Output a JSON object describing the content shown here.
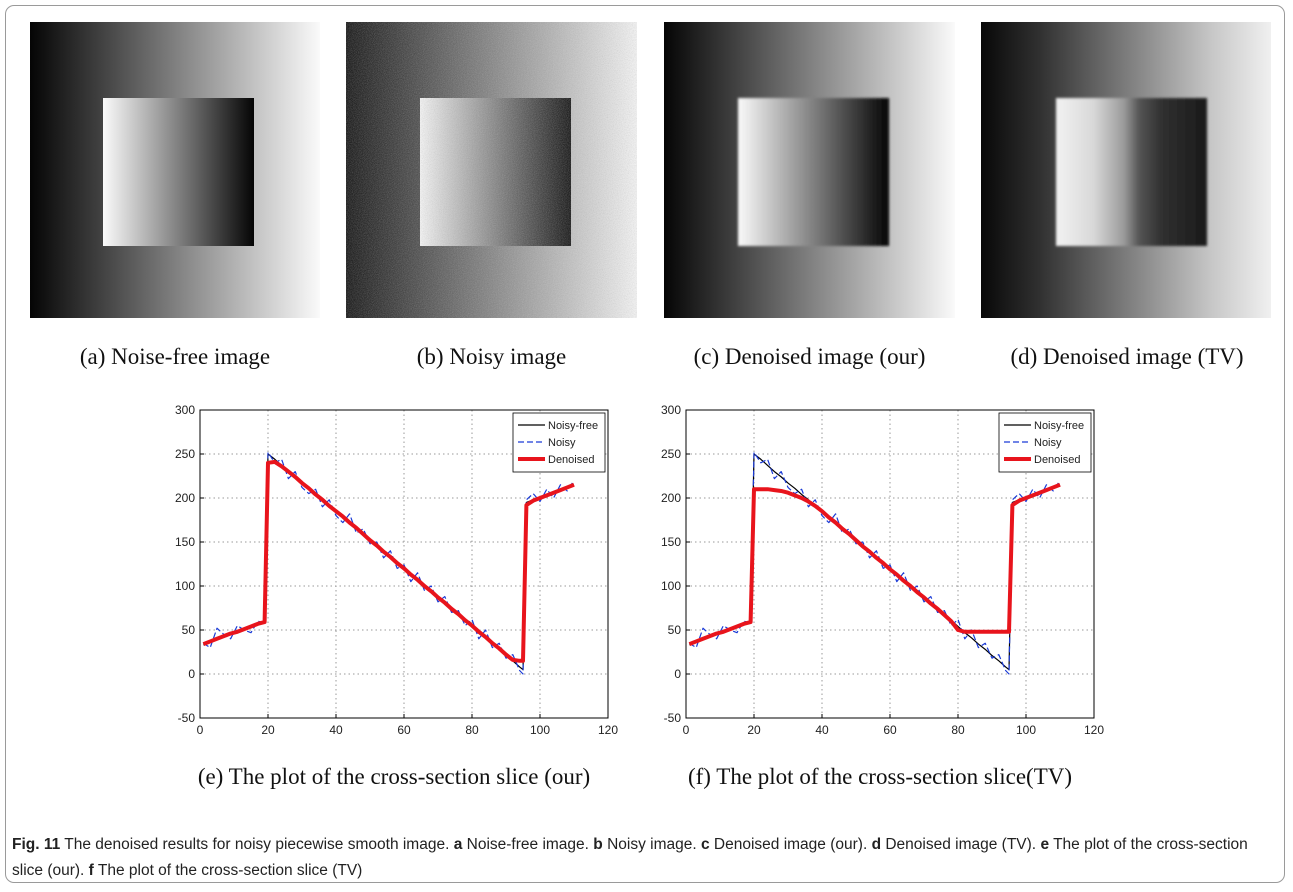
{
  "panels": [
    {
      "caption": "(a) Noise-free image"
    },
    {
      "caption": "(b) Noisy image"
    },
    {
      "caption": "(c) Denoised image (our)"
    },
    {
      "caption": "(d) Denoised image (TV)"
    }
  ],
  "chart_data": [
    {
      "type": "line",
      "caption": "(e) The plot of the cross-section slice (our)",
      "x": [
        1,
        3,
        5,
        7,
        9,
        11,
        13,
        15,
        17,
        19,
        20,
        22,
        24,
        26,
        28,
        30,
        32,
        34,
        36,
        38,
        40,
        42,
        44,
        46,
        48,
        50,
        52,
        54,
        56,
        58,
        60,
        62,
        64,
        66,
        68,
        70,
        72,
        74,
        76,
        78,
        80,
        82,
        84,
        86,
        88,
        90,
        92,
        94,
        95,
        96,
        98,
        100,
        102,
        104,
        106,
        108,
        110
      ],
      "series": [
        {
          "name": "Noisy-free",
          "color": "#000000",
          "linestyle": "solid",
          "linewidth": 1.2,
          "values": [
            33,
            36,
            39,
            42,
            45,
            48,
            51,
            54,
            57,
            60,
            250,
            244,
            237,
            230,
            224,
            217,
            211,
            204,
            198,
            191,
            185,
            178,
            172,
            165,
            159,
            152,
            145,
            139,
            132,
            126,
            119,
            113,
            106,
            100,
            93,
            87,
            80,
            74,
            67,
            61,
            54,
            47,
            41,
            34,
            28,
            21,
            15,
            8,
            5,
            195,
            198,
            201,
            204,
            207,
            209,
            212,
            215
          ]
        },
        {
          "name": "Noisy",
          "color": "#1a3ad6",
          "linestyle": "dashed",
          "linewidth": 1.2,
          "values": [
            35,
            30,
            52,
            45,
            40,
            55,
            50,
            47,
            60,
            58,
            252,
            240,
            244,
            222,
            230,
            212,
            205,
            210,
            190,
            198,
            180,
            172,
            182,
            160,
            165,
            148,
            150,
            132,
            140,
            120,
            124,
            105,
            115,
            95,
            100,
            82,
            88,
            70,
            72,
            55,
            62,
            40,
            50,
            30,
            35,
            18,
            22,
            4,
            0,
            198,
            205,
            196,
            210,
            200,
            215,
            208,
            220
          ]
        },
        {
          "name": "Denoised",
          "color": "#e8141c",
          "linestyle": "solid",
          "linewidth": 4,
          "values": [
            34,
            37,
            40,
            43,
            46,
            48,
            51,
            54,
            57,
            59,
            240,
            241,
            236,
            230,
            224,
            217,
            211,
            204,
            198,
            191,
            185,
            179,
            172,
            166,
            159,
            152,
            146,
            139,
            133,
            126,
            120,
            113,
            107,
            100,
            94,
            87,
            81,
            74,
            68,
            61,
            55,
            48,
            42,
            35,
            29,
            22,
            16,
            15,
            15,
            192,
            197,
            200,
            203,
            206,
            209,
            212,
            215
          ]
        }
      ],
      "xlim": [
        0,
        120
      ],
      "xticks": [
        0,
        20,
        40,
        60,
        80,
        100,
        120
      ],
      "ylim": [
        -50,
        300
      ],
      "yticks": [
        -50,
        0,
        50,
        100,
        150,
        200,
        250,
        300
      ],
      "grid": true,
      "legend": "upper right"
    },
    {
      "type": "line",
      "caption": "(f) The plot of the cross-section slice(TV)",
      "x": [
        1,
        3,
        5,
        7,
        9,
        11,
        13,
        15,
        17,
        19,
        20,
        22,
        24,
        26,
        28,
        30,
        32,
        34,
        36,
        38,
        40,
        42,
        44,
        46,
        48,
        50,
        52,
        54,
        56,
        58,
        60,
        62,
        64,
        66,
        68,
        70,
        72,
        74,
        76,
        78,
        80,
        82,
        84,
        86,
        88,
        90,
        92,
        94,
        95,
        96,
        98,
        100,
        102,
        104,
        106,
        108,
        110
      ],
      "series": [
        {
          "name": "Noisy-free",
          "color": "#000000",
          "linestyle": "solid",
          "linewidth": 1.2,
          "values": [
            33,
            36,
            39,
            42,
            45,
            48,
            51,
            54,
            57,
            60,
            250,
            244,
            237,
            230,
            224,
            217,
            211,
            204,
            198,
            191,
            185,
            178,
            172,
            165,
            159,
            152,
            145,
            139,
            132,
            126,
            119,
            113,
            106,
            100,
            93,
            87,
            80,
            74,
            67,
            61,
            54,
            47,
            41,
            34,
            28,
            21,
            15,
            8,
            5,
            195,
            198,
            201,
            204,
            207,
            209,
            212,
            215
          ]
        },
        {
          "name": "Noisy",
          "color": "#1a3ad6",
          "linestyle": "dashed",
          "linewidth": 1.2,
          "values": [
            35,
            30,
            52,
            45,
            40,
            55,
            50,
            47,
            60,
            58,
            252,
            240,
            244,
            222,
            230,
            212,
            205,
            210,
            190,
            198,
            180,
            172,
            182,
            160,
            165,
            148,
            150,
            132,
            140,
            120,
            124,
            105,
            115,
            95,
            100,
            82,
            88,
            70,
            72,
            55,
            62,
            40,
            50,
            30,
            35,
            18,
            22,
            4,
            0,
            198,
            205,
            196,
            210,
            200,
            215,
            208,
            220
          ]
        },
        {
          "name": "Denoised",
          "color": "#e8141c",
          "linestyle": "solid",
          "linewidth": 4,
          "values": [
            34,
            37,
            40,
            43,
            46,
            48,
            51,
            54,
            57,
            59,
            210,
            210,
            210,
            209,
            208,
            206,
            203,
            200,
            196,
            191,
            185,
            178,
            172,
            165,
            159,
            152,
            145,
            139,
            132,
            126,
            119,
            113,
            106,
            100,
            93,
            87,
            80,
            74,
            67,
            60,
            50,
            48,
            48,
            48,
            48,
            48,
            48,
            48,
            48,
            192,
            197,
            200,
            203,
            206,
            209,
            212,
            215
          ]
        }
      ],
      "xlim": [
        0,
        120
      ],
      "xticks": [
        0,
        20,
        40,
        60,
        80,
        100,
        120
      ],
      "ylim": [
        -50,
        300
      ],
      "yticks": [
        -50,
        0,
        50,
        100,
        150,
        200,
        250,
        300
      ],
      "grid": true,
      "legend": "upper right"
    }
  ],
  "figure_caption": {
    "label": "Fig. 11",
    "text": "The denoised results for noisy piecewise smooth image.",
    "items": [
      {
        "letter": "a",
        "text": "Noise-free image."
      },
      {
        "letter": "b",
        "text": "Noisy image."
      },
      {
        "letter": "c",
        "text": "Denoised image (our)."
      },
      {
        "letter": "d",
        "text": "Denoised image (TV)."
      },
      {
        "letter": "e",
        "text": "The plot of the cross-section slice (our)."
      },
      {
        "letter": "f",
        "text": "The plot of the cross-section slice (TV)"
      }
    ]
  }
}
